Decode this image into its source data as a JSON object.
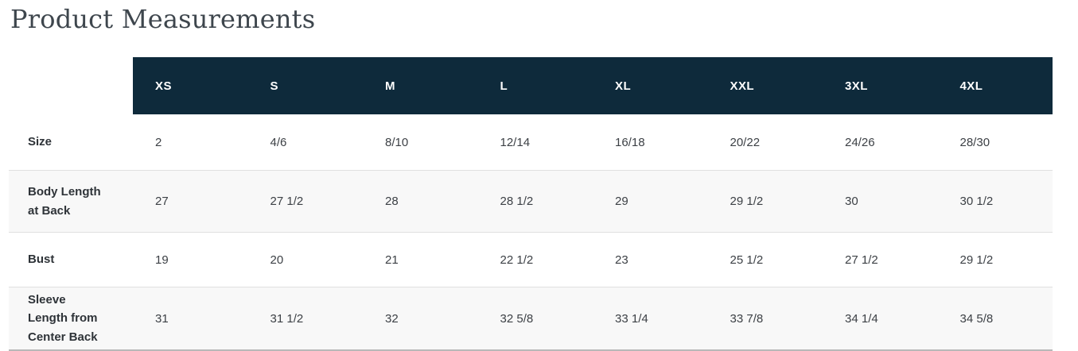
{
  "page": {
    "title": "Product Measurements"
  },
  "colors": {
    "header_bg": "#0e2a3b",
    "header_text": "#ffffff",
    "stripe_bg": "#f8f8f8",
    "row_border": "#e0e0e0",
    "bottom_border": "#b8b8b8",
    "title_text": "#3e464d",
    "label_text": "#2e3338",
    "value_text": "#3c4045"
  },
  "chart_data": {
    "type": "table",
    "title": "Product Measurements",
    "columns": [
      "XS",
      "S",
      "M",
      "L",
      "XL",
      "XXL",
      "3XL",
      "4XL"
    ],
    "rows": [
      {
        "label": "Size",
        "values": [
          "2",
          "4/6",
          "8/10",
          "12/14",
          "16/18",
          "20/22",
          "24/26",
          "28/30"
        ]
      },
      {
        "label": "Body Length at Back",
        "values": [
          "27",
          "27 1/2",
          "28",
          "28 1/2",
          "29",
          "29 1/2",
          "30",
          "30 1/2"
        ]
      },
      {
        "label": "Bust",
        "values": [
          "19",
          "20",
          "21",
          "22 1/2",
          "23",
          "25 1/2",
          "27 1/2",
          "29 1/2"
        ]
      },
      {
        "label": "Sleeve Length from Center Back",
        "values": [
          "31",
          "31 1/2",
          "32",
          "32 5/8",
          "33 1/4",
          "33 7/8",
          "34 1/4",
          "34 5/8"
        ]
      }
    ],
    "striped_rows": [
      1,
      3
    ],
    "layout": {
      "header_band": "dark navy band spans size columns only, not the label column",
      "first_column": "measurement labels, bold, no header",
      "alignment": "all cells left-aligned",
      "grid": "horizontal dividers on striped rows only"
    }
  }
}
